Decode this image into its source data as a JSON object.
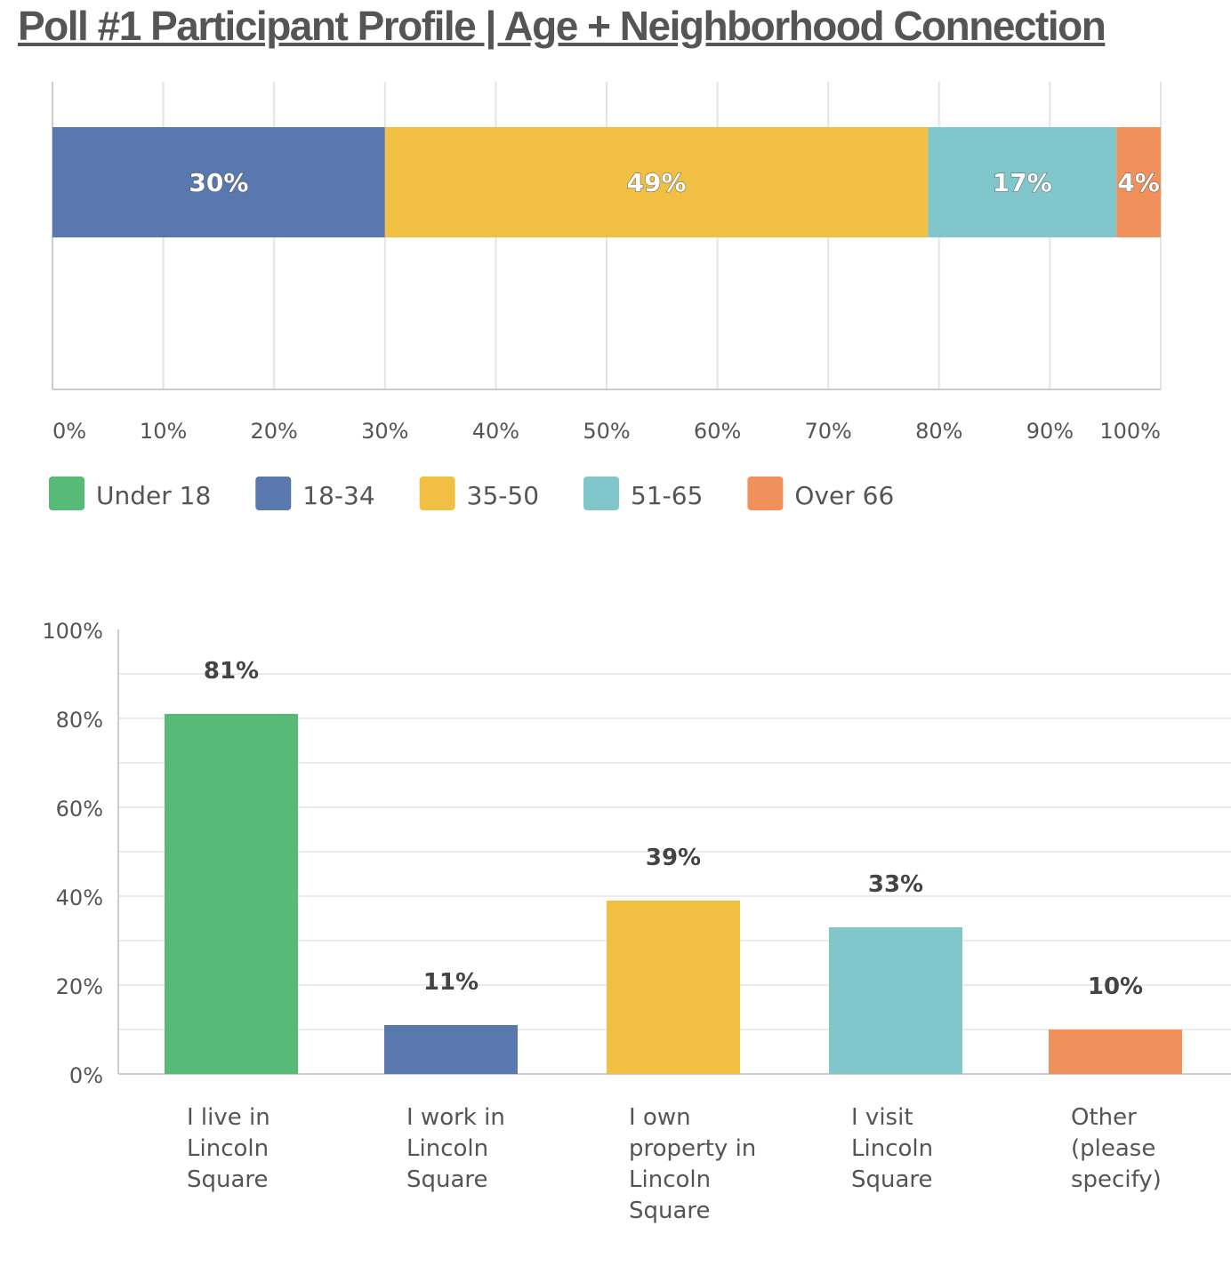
{
  "page": {
    "title": "Poll #1 Participant Profile | Age + Neighborhood Connection"
  },
  "chart_data": [
    {
      "type": "bar",
      "orientation": "horizontal-stacked",
      "series": [
        {
          "name": "Under 18",
          "value": 0,
          "label": "",
          "color": "#57BA77"
        },
        {
          "name": "18-34",
          "value": 30,
          "label": "30%",
          "color": "#5878AE"
        },
        {
          "name": "35-50",
          "value": 49,
          "label": "49%",
          "color": "#F0BF43"
        },
        {
          "name": "51-65",
          "value": 17,
          "label": "17%",
          "color": "#81C6CB"
        },
        {
          "name": "Over 66",
          "value": 4,
          "label": "4%",
          "color": "#F0905A"
        }
      ],
      "xticks": [
        "0%",
        "10%",
        "20%",
        "30%",
        "40%",
        "50%",
        "60%",
        "70%",
        "80%",
        "90%",
        "100%"
      ],
      "xlim": [
        0,
        100
      ],
      "grid": true,
      "legend": "bottom-left"
    },
    {
      "type": "bar",
      "categories": [
        [
          "I live in",
          "Lincoln",
          "Square"
        ],
        [
          "I work in",
          "Lincoln",
          "Square"
        ],
        [
          "I own",
          "property in",
          "Lincoln",
          "Square"
        ],
        [
          "I visit",
          "Lincoln",
          "Square"
        ],
        [
          "Other",
          "(please",
          "specify)"
        ]
      ],
      "values": [
        81,
        11,
        39,
        33,
        10
      ],
      "labels": [
        "81%",
        "11%",
        "39%",
        "33%",
        "10%"
      ],
      "colors": [
        "#57BA77",
        "#5878AE",
        "#F0BF43",
        "#81C6CB",
        "#F0905A"
      ],
      "yticks": [
        "100%",
        "80%",
        "60%",
        "40%",
        "20%",
        "0%"
      ],
      "ylim": [
        0,
        100
      ],
      "grid": true
    }
  ]
}
